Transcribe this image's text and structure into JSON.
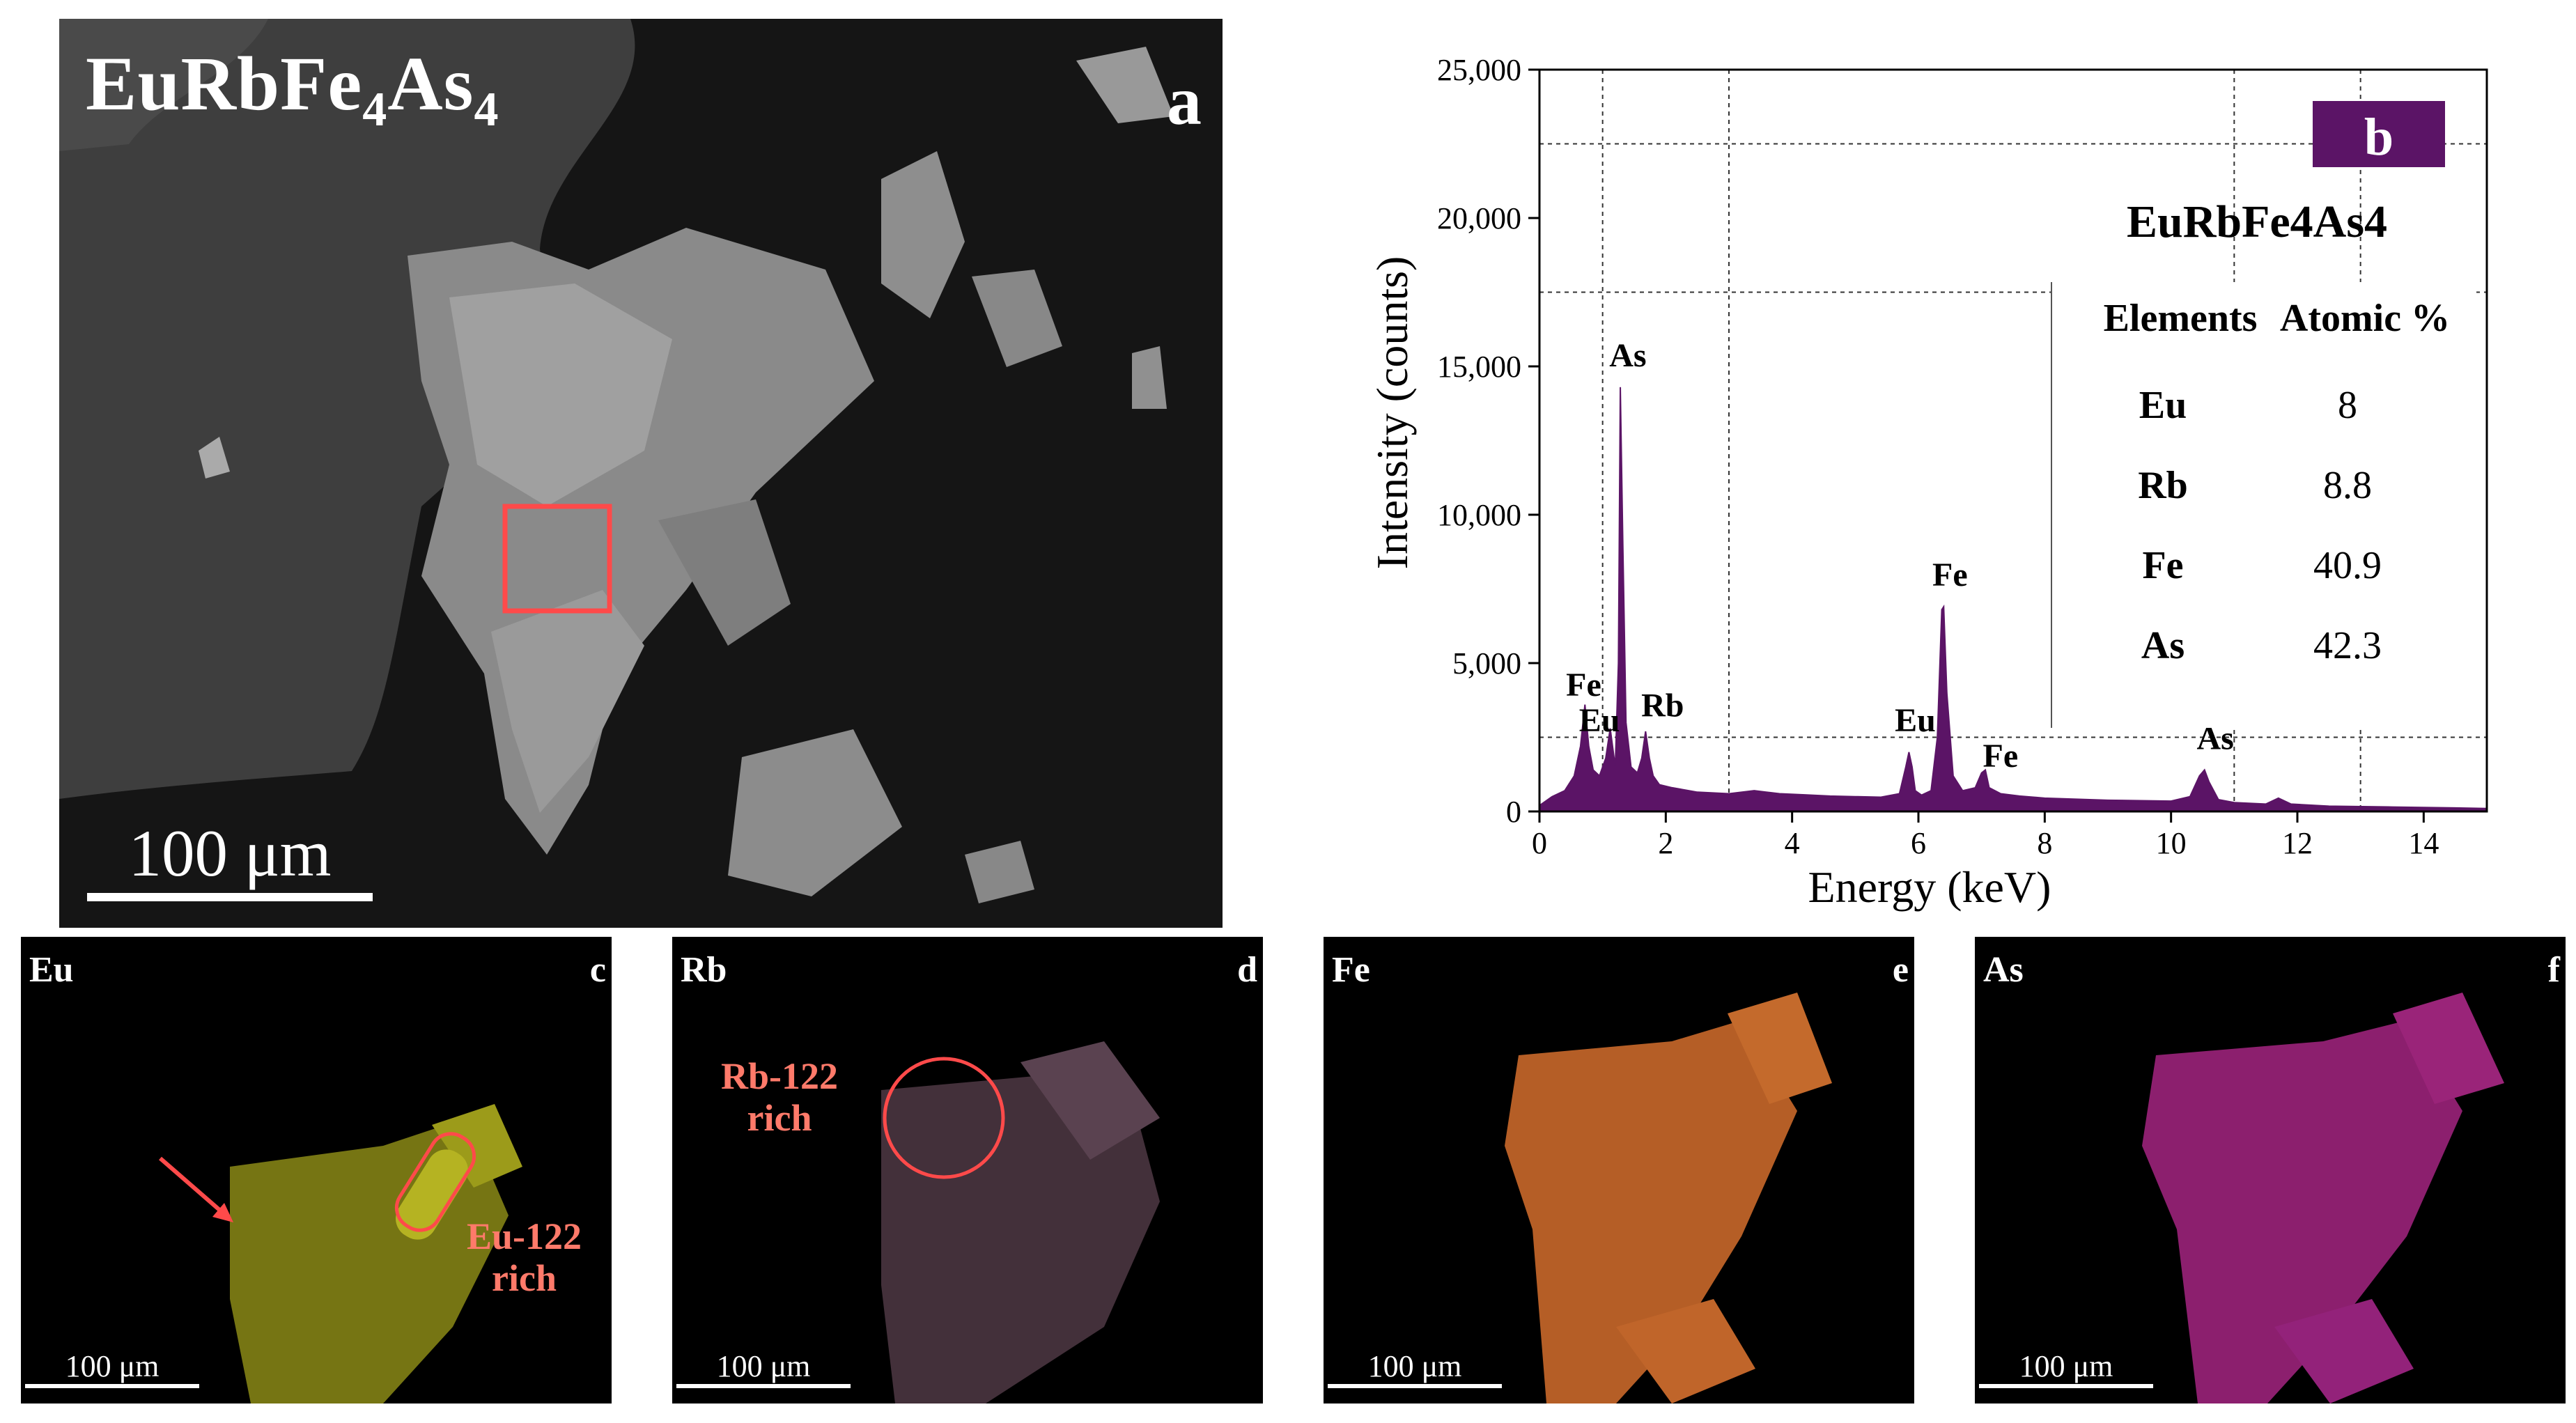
{
  "panel_a": {
    "title": "EuRbFe",
    "title_sub1": "4",
    "title_mid": "As",
    "title_sub2": "4",
    "letter": "a",
    "scale_label": "100 μm"
  },
  "chart_data": {
    "type": "line",
    "panel_letter": "b",
    "title": "EuRbFe4As4",
    "xlabel": "Energy (keV)",
    "ylabel": "Intensity (counts)",
    "xlim": [
      0,
      15
    ],
    "ylim": [
      0,
      25000
    ],
    "xticks": [
      0,
      2,
      4,
      6,
      8,
      10,
      12,
      14
    ],
    "yticks": [
      0,
      5000,
      10000,
      15000,
      20000,
      25000
    ],
    "ytick_labels": [
      "0",
      "5,000",
      "10,000",
      "15,000",
      "20,000",
      "25,000"
    ],
    "series_color": "#5b1466",
    "series": [
      {
        "x": [
          0.0,
          0.2,
          0.4,
          0.55,
          0.65,
          0.72,
          0.78,
          0.85,
          0.95,
          1.05,
          1.12,
          1.2,
          1.25,
          1.28,
          1.32,
          1.37,
          1.45,
          1.55,
          1.62,
          1.68,
          1.74,
          1.8,
          1.9,
          2.1,
          2.5,
          3.0,
          3.4,
          3.6,
          3.8,
          4.2,
          4.6,
          5.0,
          5.4,
          5.7,
          5.8,
          5.85,
          5.9,
          5.95,
          6.05,
          6.2,
          6.3,
          6.37,
          6.4,
          6.45,
          6.55,
          6.7,
          6.9,
          7.0,
          7.06,
          7.12,
          7.3,
          7.6,
          8.0,
          9.0,
          10.0,
          10.3,
          10.45,
          10.53,
          10.6,
          10.75,
          11.0,
          11.5,
          11.7,
          11.9,
          12.5,
          13.5,
          14.5,
          15.0
        ],
        "y": [
          200,
          500,
          700,
          1200,
          2200,
          3600,
          2200,
          1400,
          1200,
          1800,
          2800,
          1500,
          5000,
          14300,
          9000,
          3000,
          1500,
          1300,
          1800,
          2700,
          1800,
          1200,
          900,
          800,
          650,
          600,
          700,
          650,
          600,
          560,
          520,
          500,
          480,
          600,
          1500,
          2000,
          1500,
          700,
          550,
          700,
          2500,
          6800,
          6900,
          4000,
          1200,
          700,
          800,
          1300,
          1400,
          800,
          600,
          520,
          450,
          380,
          350,
          500,
          1200,
          1400,
          1000,
          400,
          300,
          250,
          450,
          250,
          180,
          150,
          120,
          100
        ]
      }
    ],
    "peak_labels": [
      {
        "text": "Fe",
        "x": 0.7,
        "y": 3900
      },
      {
        "text": "Eu",
        "x": 0.95,
        "y": 2700
      },
      {
        "text": "Rb",
        "x": 1.95,
        "y": 3200
      },
      {
        "text": "As",
        "x": 1.4,
        "y": 15000
      },
      {
        "text": "Eu",
        "x": 5.95,
        "y": 2700
      },
      {
        "text": "Fe",
        "x": 6.5,
        "y": 7600
      },
      {
        "text": "Fe",
        "x": 7.3,
        "y": 1500
      },
      {
        "text": "As",
        "x": 10.7,
        "y": 2100
      }
    ],
    "dashed_vlines": [
      1,
      3,
      11,
      13
    ],
    "dashed_hlines": [
      2500,
      17500,
      22500
    ],
    "table": {
      "headers": [
        "Elements",
        "Atomic %"
      ],
      "rows": [
        [
          "Eu",
          "8"
        ],
        [
          "Rb",
          "8.8"
        ],
        [
          "Fe",
          "40.9"
        ],
        [
          "As",
          "42.3"
        ]
      ]
    }
  },
  "maps": [
    {
      "element": "Eu",
      "letter": "c",
      "scale_label": "100 μm",
      "color": "#a6a51c",
      "annotation_line1": "Eu-122",
      "annotation_line2": "rich"
    },
    {
      "element": "Rb",
      "letter": "d",
      "scale_label": "100 μm",
      "color": "#7a5a68",
      "annotation_line1": "Rb-122",
      "annotation_line2": "rich"
    },
    {
      "element": "Fe",
      "letter": "e",
      "scale_label": "100 μm",
      "color": "#c86a2e"
    },
    {
      "element": "As",
      "letter": "f",
      "scale_label": "100 μm",
      "color": "#a0267e"
    }
  ]
}
